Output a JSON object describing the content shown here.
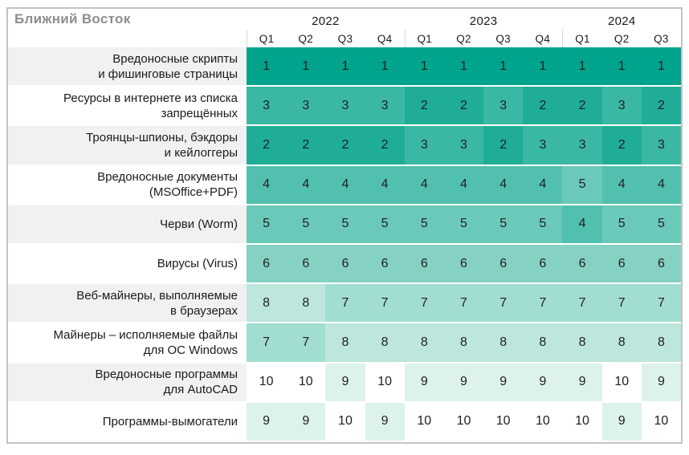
{
  "chart_data": {
    "type": "heatmap",
    "title": "Ближний Восток",
    "value_meaning": "rank of threat category per quarter (1 = most prevalent, 10 = least)",
    "year_groups": [
      {
        "label": "2022",
        "quarters": [
          "Q1",
          "Q2",
          "Q3",
          "Q4"
        ]
      },
      {
        "label": "2023",
        "quarters": [
          "Q1",
          "Q2",
          "Q3",
          "Q4"
        ]
      },
      {
        "label": "2024",
        "quarters": [
          "Q1",
          "Q2",
          "Q3"
        ]
      }
    ],
    "columns": [
      "2022-Q1",
      "2022-Q2",
      "2022-Q3",
      "2022-Q4",
      "2023-Q1",
      "2023-Q2",
      "2023-Q3",
      "2023-Q4",
      "2024-Q1",
      "2024-Q2",
      "2024-Q3"
    ],
    "rows": [
      {
        "label": "Вредоносные скрипты\nи фишинговые страницы",
        "values": [
          1,
          1,
          1,
          1,
          1,
          1,
          1,
          1,
          1,
          1,
          1
        ]
      },
      {
        "label": "Ресурсы в интернете из списка\nзапрещённых",
        "values": [
          3,
          3,
          3,
          3,
          2,
          2,
          3,
          2,
          2,
          3,
          2
        ]
      },
      {
        "label": "Троянцы-шпионы, бэкдоры\nи кейлоггеры",
        "values": [
          2,
          2,
          2,
          2,
          3,
          3,
          2,
          3,
          3,
          2,
          3
        ]
      },
      {
        "label": "Вредоносные документы\n(MSOffice+PDF)",
        "values": [
          4,
          4,
          4,
          4,
          4,
          4,
          4,
          4,
          5,
          4,
          4
        ]
      },
      {
        "label": "Черви (Worm)",
        "values": [
          5,
          5,
          5,
          5,
          5,
          5,
          5,
          5,
          4,
          5,
          5
        ]
      },
      {
        "label": "Вирусы (Virus)",
        "values": [
          6,
          6,
          6,
          6,
          6,
          6,
          6,
          6,
          6,
          6,
          6
        ]
      },
      {
        "label": "Веб-майнеры, выполняемые\nв браузерах",
        "values": [
          8,
          8,
          7,
          7,
          7,
          7,
          7,
          7,
          7,
          7,
          7
        ]
      },
      {
        "label": "Майнеры – исполняемые файлы\nдля ОС Windows",
        "values": [
          7,
          7,
          8,
          8,
          8,
          8,
          8,
          8,
          8,
          8,
          8
        ]
      },
      {
        "label": "Вредоносные программы\nдля AutoCAD",
        "values": [
          10,
          10,
          9,
          10,
          9,
          9,
          9,
          9,
          9,
          10,
          9
        ]
      },
      {
        "label": "Программы-вымогатели",
        "values": [
          9,
          9,
          10,
          9,
          10,
          10,
          10,
          10,
          10,
          9,
          10
        ]
      }
    ],
    "layout_hints": {
      "grid": false,
      "legend": "none",
      "rank_scale": [
        1,
        10
      ]
    }
  },
  "colors": {
    "rank_scale": {
      "1": "#00a48c",
      "2": "#1fad98",
      "3": "#3ab8a3",
      "4": "#52c0ae",
      "5": "#6bc9b9",
      "6": "#85d2c4",
      "7": "#a2ddd1",
      "8": "#bde6dd",
      "9": "#def2ec",
      "10": "#ffffff"
    },
    "label_alt_background": "#f1f1f1",
    "frame_border": "#c4c4c4",
    "title_text": "#8e8e8e",
    "cell_text": "#1f1f1f",
    "year_separator": "#d8d8d8"
  }
}
